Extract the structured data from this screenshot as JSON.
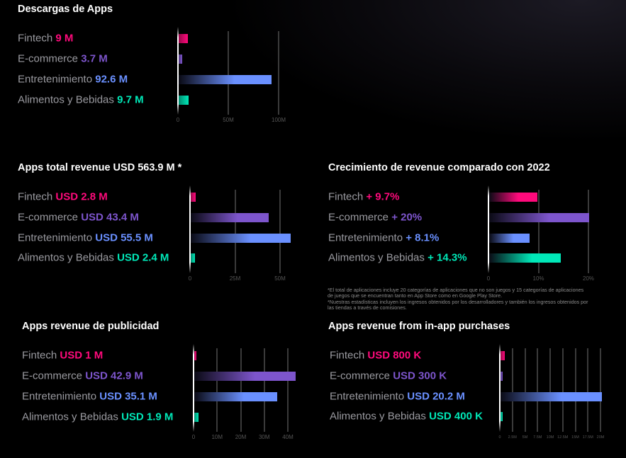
{
  "colors": {
    "fintech": "#ff0a7c",
    "ecommerce": "#7d55cc",
    "entretenimiento": "#6a90ff",
    "alimentos": "#00e8b8"
  },
  "chart_data": [
    {
      "type": "bar",
      "orientation": "horizontal",
      "title": "Descargas de Apps",
      "categories": [
        "Fintech",
        "E-commerce",
        "Entretenimiento",
        "Alimentos y Bebidas"
      ],
      "values": [
        9,
        3.7,
        92.6,
        9.7
      ],
      "value_labels": [
        "9 M",
        "3.7 M",
        "92.6 M",
        "9.7 M"
      ],
      "unit": "M",
      "xlim": [
        0,
        100
      ],
      "ticks": [
        "0",
        "50M",
        "100M"
      ],
      "tick_values": [
        0,
        50,
        100
      ],
      "grid": true
    },
    {
      "type": "bar",
      "orientation": "horizontal",
      "title": "Apps total revenue USD 563.9 M *",
      "categories": [
        "Fintech",
        "E-commerce",
        "Entretenimiento",
        "Alimentos y Bebidas"
      ],
      "values": [
        2.8,
        43.4,
        55.5,
        2.4
      ],
      "value_labels": [
        "USD 2.8 M",
        "USD 43.4 M",
        "USD 55.5 M",
        "USD 2.4 M"
      ],
      "unit": "M",
      "xlim": [
        0,
        50
      ],
      "ticks": [
        "0",
        "25M",
        "50M"
      ],
      "tick_values": [
        0,
        25,
        50
      ],
      "grid": true
    },
    {
      "type": "bar",
      "orientation": "horizontal",
      "title": "Crecimiento de revenue comparado con 2022",
      "categories": [
        "Fintech",
        "E-commerce",
        "Entretenimiento",
        "Alimentos y Bebidas"
      ],
      "values": [
        9.7,
        20,
        8.1,
        14.3
      ],
      "value_labels": [
        "+ 9.7%",
        "+ 20%",
        "+ 8.1%",
        "+ 14.3%"
      ],
      "unit": "%",
      "xlim": [
        0,
        20
      ],
      "ticks": [
        "0",
        "10%",
        "20%"
      ],
      "tick_values": [
        0,
        10,
        20
      ],
      "grid": true
    },
    {
      "type": "bar",
      "orientation": "horizontal",
      "title": "Apps revenue de publicidad",
      "categories": [
        "Fintech",
        "E-commerce",
        "Entretenimiento",
        "Alimentos y Bebidas"
      ],
      "values": [
        1,
        42.9,
        35.1,
        1.9
      ],
      "value_labels": [
        "USD 1 M",
        "USD 42.9 M",
        "USD 35.1 M",
        "USD 1.9 M"
      ],
      "unit": "M",
      "xlim": [
        0,
        40
      ],
      "ticks": [
        "0",
        "10M",
        "20M",
        "30M",
        "40M"
      ],
      "tick_values": [
        0,
        10,
        20,
        30,
        40
      ],
      "grid": true
    },
    {
      "type": "bar",
      "orientation": "horizontal",
      "title": "Apps revenue from in-app purchases",
      "categories": [
        "Fintech",
        "E-commerce",
        "Entretenimiento",
        "Alimentos y Bebidas"
      ],
      "values": [
        0.8,
        0.3,
        20.2,
        0.4
      ],
      "value_labels": [
        "USD 800 K",
        "USD 300 K",
        "USD 20.2 M",
        "USD 400 K"
      ],
      "unit": "M",
      "xlim": [
        0,
        20
      ],
      "ticks": [
        "0",
        "2.5M",
        "5M",
        "7.5M",
        "10M",
        "12.5M",
        "15M",
        "17.5M",
        "20M"
      ],
      "tick_values": [
        0,
        2.5,
        5,
        7.5,
        10,
        12.5,
        15,
        17.5,
        20
      ],
      "grid": true
    }
  ],
  "footnote": {
    "line1": "*El total de aplicaciones incluye 20 categorías de aplicaciones que no son juegos y 15 categorías de aplicaciones de juegos que se encuentran tanto en App Store como en Google Play Store.",
    "line2": "*Nuestras estadísticas incluyen los ingresos obtenidos por los desarrolladores y también los ingresos obtenidos por las tiendas a través de comisiones."
  }
}
